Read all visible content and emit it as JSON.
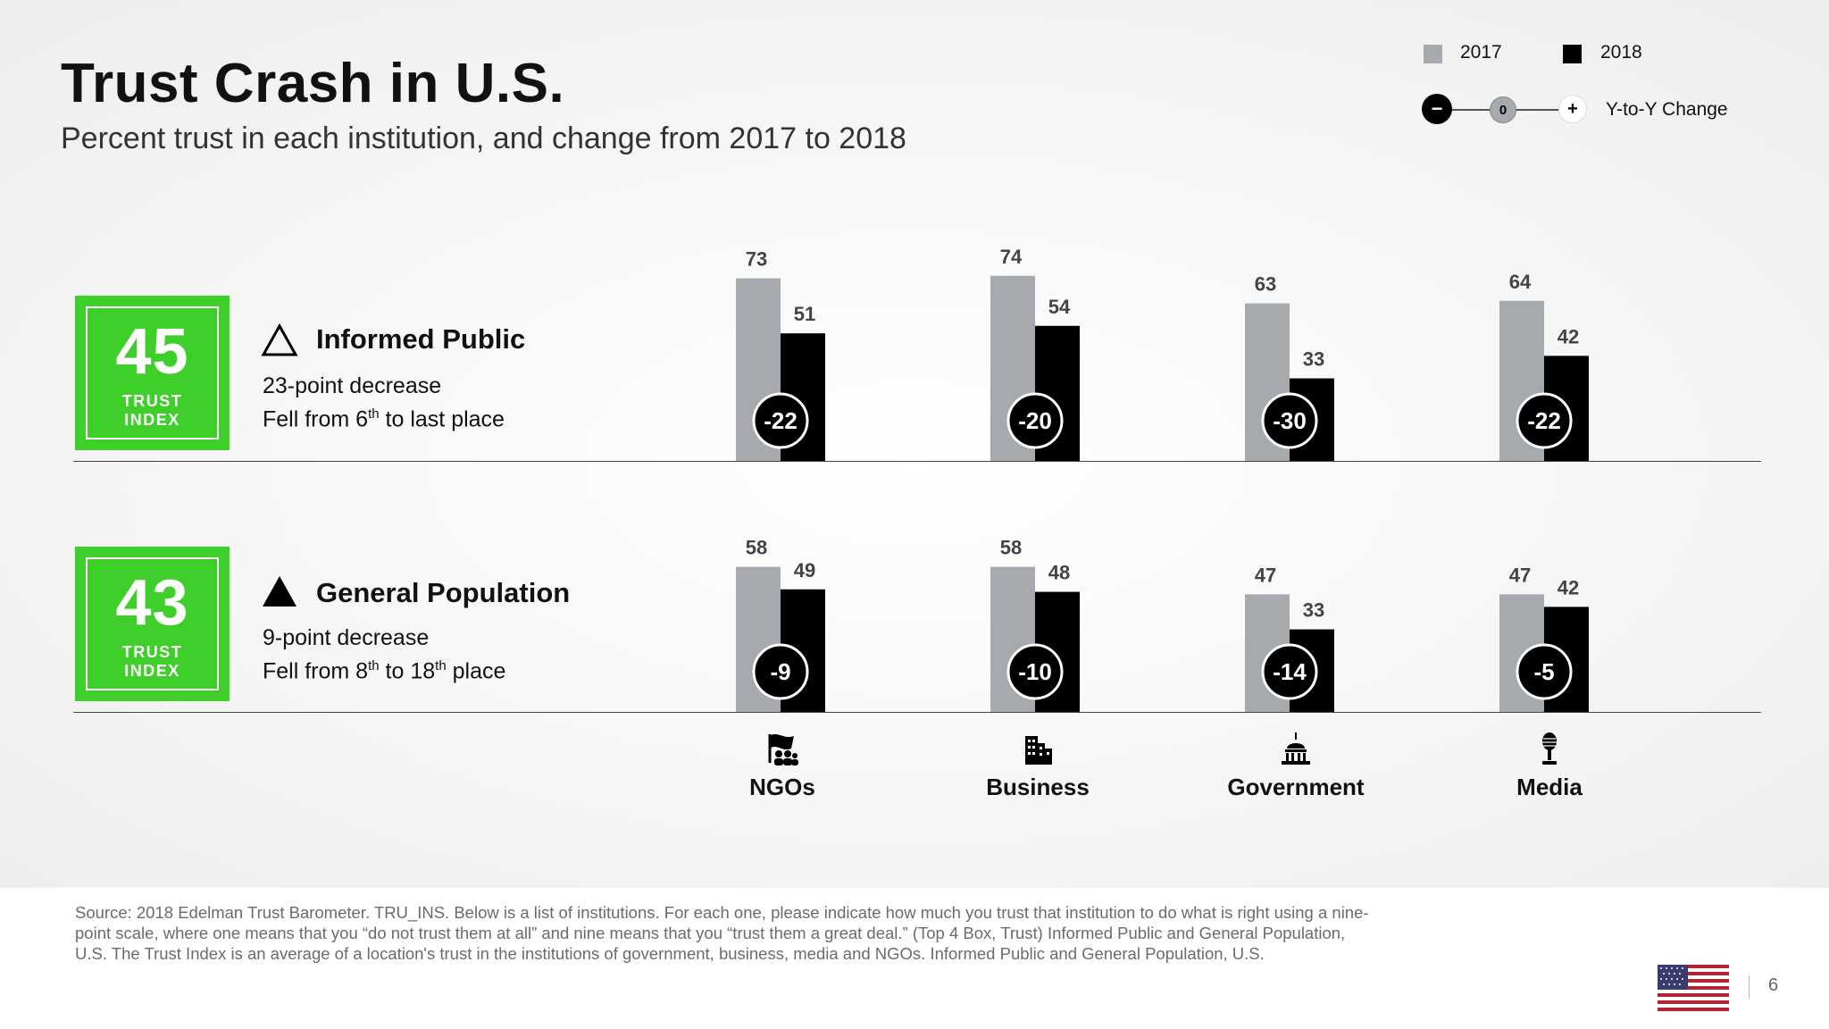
{
  "title": "Trust Crash in U.S.",
  "subtitle": "Percent trust in each institution, and change from 2017 to 2018",
  "legend": {
    "y2017": "2017",
    "y2018": "2018",
    "minus": "−",
    "zero": "0",
    "plus": "+",
    "yoy": "Y-to-Y Change"
  },
  "colors": {
    "y2017": "#a6a9ae",
    "y2018": "#000000",
    "trust_green": "#3ecf2a"
  },
  "audiences": [
    {
      "trust_index": "45",
      "trust_label": "TRUST",
      "index_label": "INDEX",
      "icon": "outline-triangle-icon",
      "name": "Informed Public",
      "line1": "23-point decrease",
      "line2_pre": "Fell from 6",
      "line2_sup1": "th",
      "line2_mid": " to last place",
      "line2_sup2": "",
      "line2_post": ""
    },
    {
      "trust_index": "43",
      "trust_label": "TRUST",
      "index_label": "INDEX",
      "icon": "filled-triangle-icon",
      "name": "General Population",
      "line1": "9-point decrease",
      "line2_pre": "Fell from 8",
      "line2_sup1": "th",
      "line2_mid": " to 18",
      "line2_sup2": "th",
      "line2_post": " place"
    }
  ],
  "categories": [
    {
      "label": "NGOs",
      "icon": "flag-people-icon"
    },
    {
      "label": "Business",
      "icon": "buildings-icon"
    },
    {
      "label": "Government",
      "icon": "capitol-icon"
    },
    {
      "label": "Media",
      "icon": "microphone-icon"
    }
  ],
  "chart_data": [
    {
      "type": "bar",
      "title": "Informed Public",
      "categories": [
        "NGOs",
        "Business",
        "Government",
        "Media"
      ],
      "series": [
        {
          "name": "2017",
          "values": [
            73,
            74,
            63,
            64
          ]
        },
        {
          "name": "2018",
          "values": [
            51,
            54,
            33,
            42
          ]
        }
      ],
      "changes": [
        -22,
        -20,
        -30,
        -22
      ],
      "ylim": [
        0,
        100
      ]
    },
    {
      "type": "bar",
      "title": "General Population",
      "categories": [
        "NGOs",
        "Business",
        "Government",
        "Media"
      ],
      "series": [
        {
          "name": "2017",
          "values": [
            58,
            58,
            47,
            47
          ]
        },
        {
          "name": "2018",
          "values": [
            49,
            48,
            33,
            42
          ]
        }
      ],
      "changes": [
        -9,
        -10,
        -14,
        -5
      ],
      "ylim": [
        0,
        100
      ]
    }
  ],
  "footer": {
    "source": "Source: 2018 Edelman Trust Barometer. TRU_INS. Below is a list of institutions. For each one, please indicate how much you trust that institution to do what is right using a nine-point scale, where one means that you “do not trust them at all” and nine means that you “trust them a great deal.” (Top 4 Box, Trust) Informed Public and General Population, U.S. The Trust Index is an average of a location's trust in the institutions of government, business, media and NGOs. Informed Public and General Population, U.S.",
    "page": "6",
    "flag_icon": "us-flag-icon"
  }
}
